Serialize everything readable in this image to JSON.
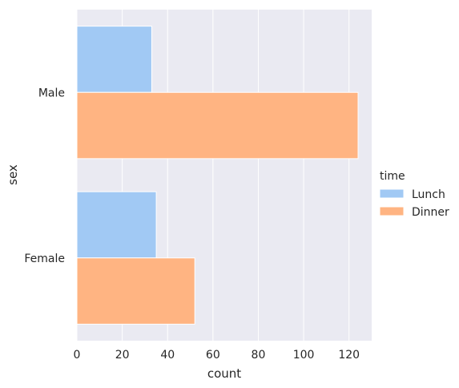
{
  "chart_data": {
    "type": "bar",
    "orientation": "horizontal",
    "categories": [
      "Male",
      "Female"
    ],
    "series": [
      {
        "name": "Lunch",
        "values": [
          33,
          35
        ],
        "color": "#a1c9f4"
      },
      {
        "name": "Dinner",
        "values": [
          124,
          52
        ],
        "color": "#ffb482"
      }
    ],
    "xlabel": "count",
    "ylabel": "sex",
    "xlim": [
      0,
      130
    ],
    "xticks": [
      0,
      20,
      40,
      60,
      80,
      100,
      120
    ],
    "grid": true,
    "legend": {
      "title": "time",
      "placement": "right"
    },
    "colors": {
      "background": "#eaeaf2",
      "grid": "#ffffff",
      "text": "#262626"
    }
  }
}
